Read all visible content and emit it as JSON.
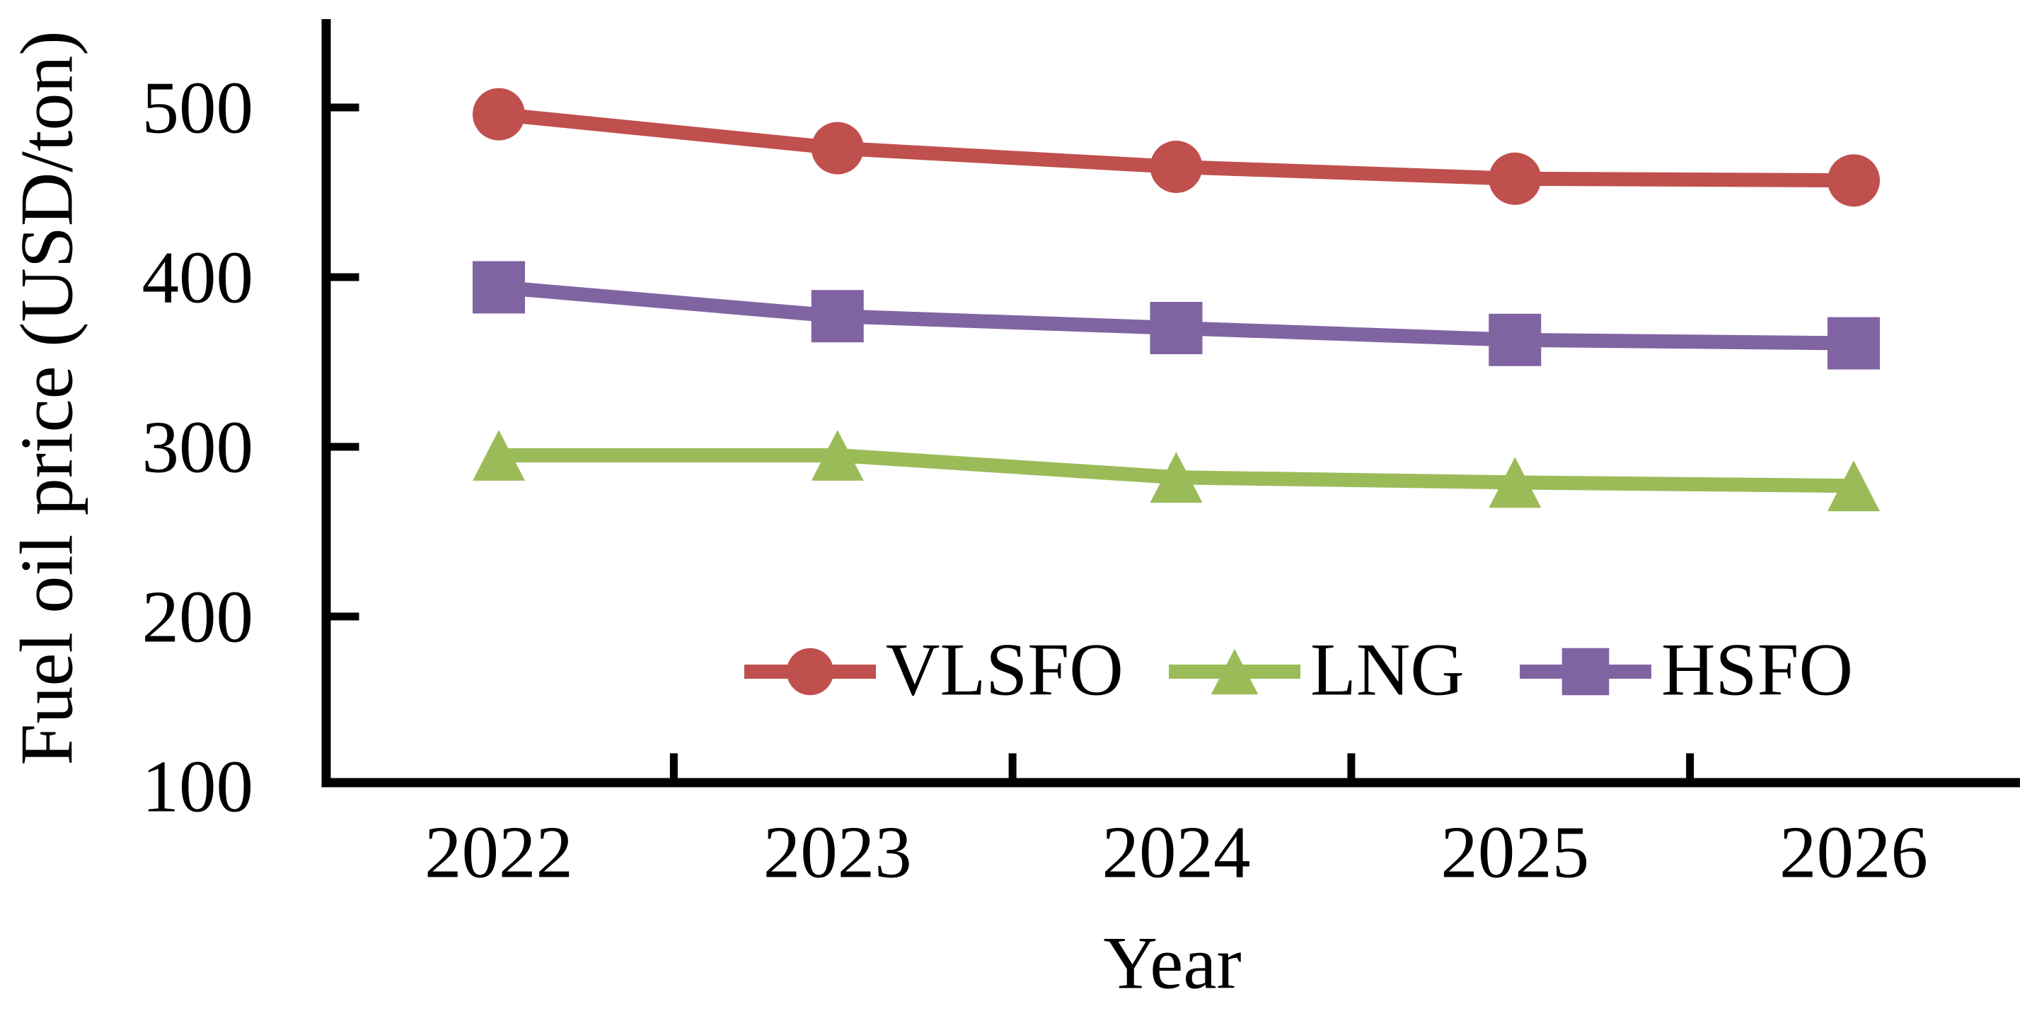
{
  "chart_data": {
    "type": "line",
    "title": "",
    "xlabel": "Year",
    "ylabel": "Fuel oil price (USD/ton)",
    "categories": [
      "2022",
      "2023",
      "2024",
      "2025",
      "2026"
    ],
    "y_ticks": [
      100,
      200,
      300,
      400,
      500
    ],
    "y_tick_labels": [
      "100",
      "200",
      "300",
      "400",
      "500"
    ],
    "ylim": [
      100,
      550
    ],
    "grid": false,
    "legend_position": "inside-lower-center",
    "axis_color": "#000000",
    "background_color": "#ffffff",
    "series": [
      {
        "name": "VLSFO",
        "marker": "circle",
        "color": "#c0504d",
        "values": [
          496,
          476,
          465,
          458,
          457
        ]
      },
      {
        "name": "LNG",
        "marker": "triangle",
        "color": "#9bbb59",
        "values": [
          295,
          295,
          282,
          279,
          277
        ]
      },
      {
        "name": "HSFO",
        "marker": "square",
        "color": "#8064a2",
        "values": [
          394,
          377,
          370,
          363,
          361
        ]
      }
    ],
    "legend_order": [
      "VLSFO",
      "LNG",
      "HSFO"
    ]
  }
}
